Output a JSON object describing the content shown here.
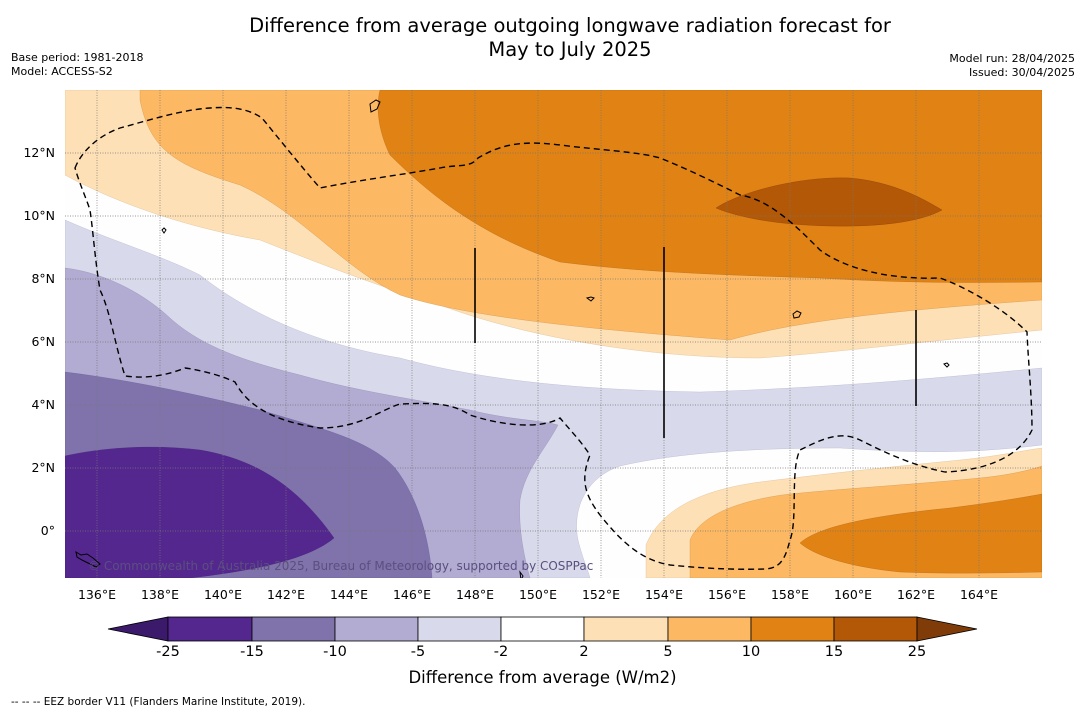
{
  "title_line1": "Difference from average outgoing longwave radiation forecast for",
  "title_line2": "May to July 2025",
  "base_period": "Base period: 1981-2018",
  "model": "Model: ACCESS-S2",
  "model_run": "Model run: 28/04/2025",
  "issued": "Issued: 30/04/2025",
  "copyright": "© Commonwealth of Australia 2025, Bureau of Meteorology, supported by COSPPac",
  "lat_labels": [
    "12°N",
    "10°N",
    "8°N",
    "6°N",
    "4°N",
    "2°N",
    "0°"
  ],
  "lon_labels": [
    "136°E",
    "138°E",
    "140°E",
    "142°E",
    "144°E",
    "146°E",
    "148°E",
    "150°E",
    "152°E",
    "154°E",
    "156°E",
    "158°E",
    "160°E",
    "162°E",
    "164°E"
  ],
  "colorbar": {
    "ticks": [
      "-25",
      "-15",
      "-10",
      "-5",
      "-2",
      "2",
      "5",
      "10",
      "15",
      "25"
    ],
    "colors": {
      "lt-25": "#3b1a6b",
      "-25_-15": "#54278f",
      "-15_-10": "#8073ac",
      "-10_-5": "#b2abd2",
      "-5_-2": "#d8daeb",
      "-2_2": "#ffffff",
      "2_5": "#fee0b6",
      "5_10": "#fdb863",
      "10_15": "#e08214",
      "15_25": "#b35806",
      "gt25": "#7f3b08"
    },
    "label": "Difference from average (W/m2)"
  },
  "footnote": "--  --  -- EEZ border V11 (Flanders Marine Institute, 2019)."
}
